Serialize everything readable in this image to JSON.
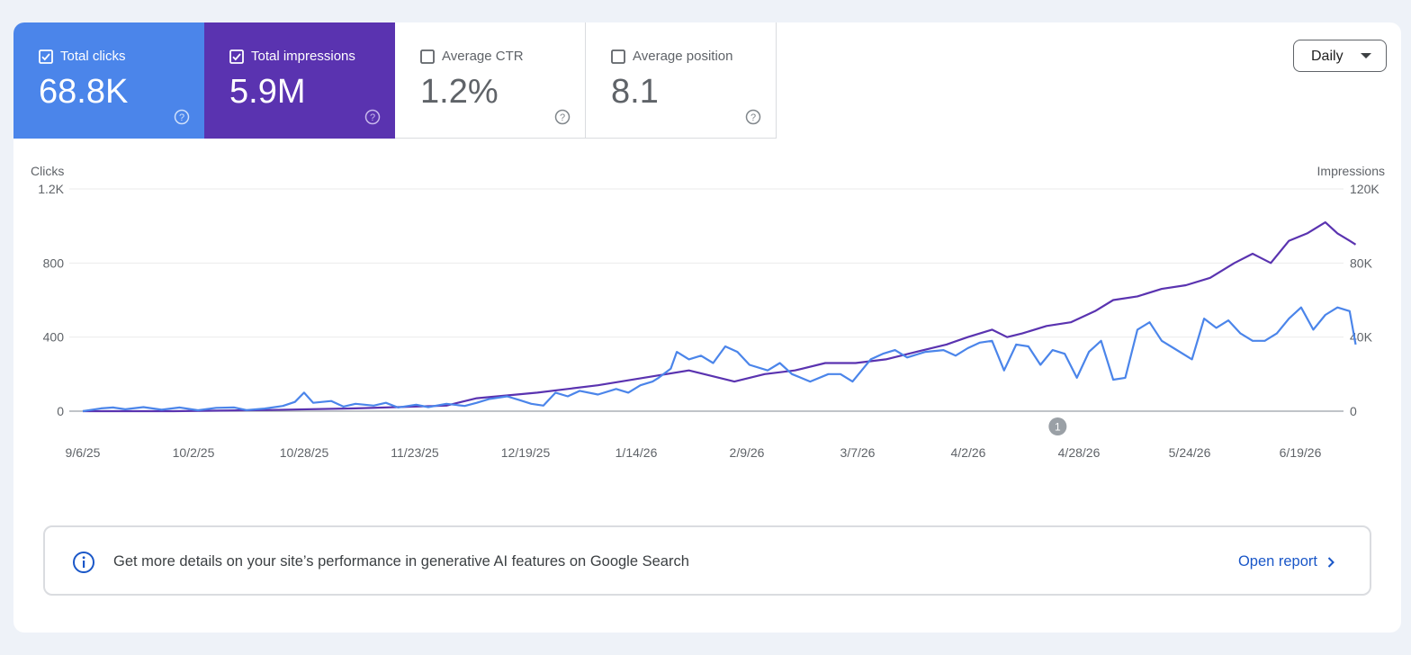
{
  "metrics": [
    {
      "label": "Total clicks",
      "value": "68.8K",
      "checked": true,
      "color": "#4b85ea"
    },
    {
      "label": "Total impressions",
      "value": "5.9M",
      "checked": true,
      "color": "#5a33b0"
    },
    {
      "label": "Average CTR",
      "value": "1.2%",
      "checked": false
    },
    {
      "label": "Average position",
      "value": "8.1",
      "checked": false
    }
  ],
  "period_select": {
    "label": "Daily"
  },
  "chart_data": {
    "type": "line",
    "left_axis_title": "Clicks",
    "right_axis_title": "Impressions",
    "left_ticks": [
      "0",
      "400",
      "800",
      "1.2K"
    ],
    "right_ticks": [
      "0",
      "40K",
      "80K",
      "120K"
    ],
    "ylim_left": [
      0,
      1200
    ],
    "ylim_right": [
      0,
      120000
    ],
    "x_tick_labels": [
      "9/6/25",
      "10/2/25",
      "10/28/25",
      "11/23/25",
      "12/19/25",
      "1/14/26",
      "2/9/26",
      "3/7/26",
      "4/2/26",
      "4/28/26",
      "5/24/26",
      "6/19/26"
    ],
    "x_day_count": 299,
    "annotation": {
      "label": "1",
      "day": 229
    },
    "series": [
      {
        "name": "Total clicks",
        "axis": "left",
        "color": "#4b85ea",
        "points": [
          [
            0,
            0
          ],
          [
            6,
            15
          ],
          [
            10,
            20
          ],
          [
            14,
            10
          ],
          [
            20,
            22
          ],
          [
            26,
            8
          ],
          [
            32,
            20
          ],
          [
            38,
            5
          ],
          [
            44,
            18
          ],
          [
            50,
            20
          ],
          [
            54,
            6
          ],
          [
            60,
            14
          ],
          [
            66,
            28
          ],
          [
            70,
            50
          ],
          [
            73,
            100
          ],
          [
            76,
            45
          ],
          [
            82,
            55
          ],
          [
            86,
            25
          ],
          [
            90,
            40
          ],
          [
            96,
            30
          ],
          [
            100,
            45
          ],
          [
            104,
            20
          ],
          [
            110,
            35
          ],
          [
            114,
            22
          ],
          [
            120,
            40
          ],
          [
            126,
            28
          ],
          [
            130,
            45
          ],
          [
            134,
            65
          ],
          [
            140,
            80
          ],
          [
            144,
            60
          ],
          [
            148,
            40
          ],
          [
            152,
            30
          ],
          [
            156,
            100
          ],
          [
            160,
            80
          ],
          [
            164,
            110
          ],
          [
            170,
            90
          ],
          [
            176,
            120
          ],
          [
            180,
            100
          ],
          [
            184,
            140
          ],
          [
            188,
            160
          ],
          [
            190,
            180
          ],
          [
            194,
            230
          ],
          [
            196,
            320
          ],
          [
            200,
            280
          ],
          [
            204,
            300
          ],
          [
            208,
            260
          ],
          [
            212,
            350
          ],
          [
            216,
            320
          ],
          [
            220,
            250
          ],
          [
            226,
            220
          ],
          [
            230,
            260
          ],
          [
            234,
            200
          ],
          [
            240,
            160
          ],
          [
            246,
            200
          ],
          [
            250,
            200
          ],
          [
            254,
            160
          ],
          [
            260,
            280
          ],
          [
            264,
            310
          ],
          [
            268,
            330
          ],
          [
            272,
            290
          ],
          [
            278,
            320
          ],
          [
            284,
            330
          ],
          [
            288,
            300
          ],
          [
            292,
            340
          ],
          [
            296,
            370
          ],
          [
            300,
            380
          ],
          [
            304,
            220
          ],
          [
            308,
            360
          ],
          [
            312,
            350
          ],
          [
            316,
            250
          ],
          [
            320,
            330
          ],
          [
            324,
            310
          ],
          [
            328,
            180
          ],
          [
            332,
            320
          ],
          [
            336,
            380
          ],
          [
            340,
            170
          ],
          [
            344,
            180
          ],
          [
            348,
            440
          ],
          [
            352,
            480
          ],
          [
            356,
            380
          ],
          [
            360,
            340
          ],
          [
            366,
            280
          ],
          [
            370,
            500
          ],
          [
            374,
            450
          ],
          [
            378,
            490
          ],
          [
            382,
            420
          ],
          [
            386,
            380
          ],
          [
            390,
            380
          ],
          [
            394,
            420
          ],
          [
            398,
            500
          ],
          [
            402,
            560
          ],
          [
            406,
            440
          ],
          [
            410,
            520
          ],
          [
            414,
            560
          ],
          [
            418,
            540
          ],
          [
            420,
            360
          ]
        ]
      },
      {
        "name": "Total impressions",
        "axis": "right",
        "color": "#5a33b0",
        "points": [
          [
            0,
            0
          ],
          [
            30,
            0
          ],
          [
            60,
            600
          ],
          [
            90,
            1500
          ],
          [
            120,
            3000
          ],
          [
            130,
            7000
          ],
          [
            150,
            10000
          ],
          [
            170,
            14000
          ],
          [
            185,
            18000
          ],
          [
            200,
            22000
          ],
          [
            215,
            16000
          ],
          [
            225,
            20000
          ],
          [
            235,
            22000
          ],
          [
            245,
            26000
          ],
          [
            255,
            26000
          ],
          [
            265,
            28000
          ],
          [
            275,
            32000
          ],
          [
            285,
            36000
          ],
          [
            292,
            40000
          ],
          [
            300,
            44000
          ],
          [
            305,
            40000
          ],
          [
            310,
            42000
          ],
          [
            318,
            46000
          ],
          [
            326,
            48000
          ],
          [
            334,
            54000
          ],
          [
            340,
            60000
          ],
          [
            348,
            62000
          ],
          [
            356,
            66000
          ],
          [
            364,
            68000
          ],
          [
            372,
            72000
          ],
          [
            380,
            80000
          ],
          [
            386,
            85000
          ],
          [
            392,
            80000
          ],
          [
            398,
            92000
          ],
          [
            404,
            96000
          ],
          [
            410,
            102000
          ],
          [
            414,
            96000
          ],
          [
            418,
            92000
          ],
          [
            420,
            90000
          ]
        ]
      }
    ]
  },
  "banner": {
    "message": "Get more details on your site’s performance in generative AI features on Google Search",
    "link": "Open report"
  }
}
